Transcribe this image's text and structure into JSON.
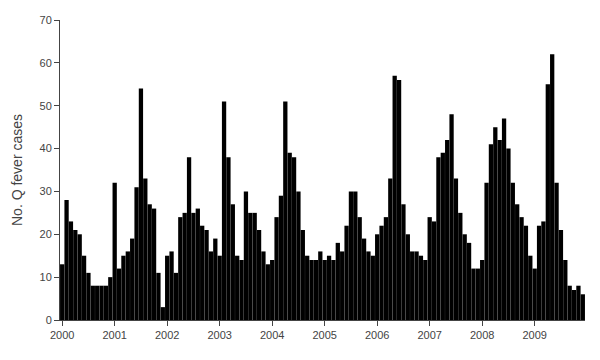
{
  "chart_data": {
    "type": "bar",
    "ylabel": "No. Q fever cases",
    "categories": [
      "2000",
      null,
      null,
      null,
      null,
      null,
      null,
      null,
      null,
      null,
      null,
      null,
      "2001",
      null,
      null,
      null,
      null,
      null,
      null,
      null,
      null,
      null,
      null,
      null,
      "2002",
      null,
      null,
      null,
      null,
      null,
      null,
      null,
      null,
      null,
      null,
      null,
      "2003",
      null,
      null,
      null,
      null,
      null,
      null,
      null,
      null,
      null,
      null,
      null,
      "2004",
      null,
      null,
      null,
      null,
      null,
      null,
      null,
      null,
      null,
      null,
      null,
      "2005",
      null,
      null,
      null,
      null,
      null,
      null,
      null,
      null,
      null,
      null,
      null,
      "2006",
      null,
      null,
      null,
      null,
      null,
      null,
      null,
      null,
      null,
      null,
      null,
      "2007",
      null,
      null,
      null,
      null,
      null,
      null,
      null,
      null,
      null,
      null,
      null,
      "2008",
      null,
      null,
      null,
      null,
      null,
      null,
      null,
      null,
      null,
      null,
      null,
      "2009",
      null,
      null,
      null,
      null,
      null,
      null,
      null,
      null,
      null,
      null,
      null
    ],
    "values": [
      13,
      28,
      23,
      21,
      20,
      15,
      11,
      8,
      8,
      8,
      8,
      10,
      32,
      12,
      15,
      16,
      19,
      31,
      54,
      33,
      27,
      26,
      11,
      3,
      15,
      16,
      11,
      24,
      25,
      38,
      25,
      26,
      22,
      21,
      16,
      19,
      15,
      51,
      38,
      27,
      15,
      14,
      30,
      25,
      25,
      21,
      16,
      13,
      14,
      24,
      29,
      51,
      39,
      38,
      30,
      21,
      15,
      14,
      14,
      16,
      14,
      15,
      14,
      18,
      16,
      22,
      30,
      30,
      24,
      19,
      16,
      15,
      20,
      22,
      24,
      33,
      57,
      56,
      27,
      20,
      16,
      16,
      15,
      14,
      24,
      23,
      38,
      39,
      42,
      48,
      33,
      25,
      20,
      18,
      12,
      12,
      14,
      32,
      41,
      45,
      42,
      47,
      40,
      32,
      27,
      24,
      22,
      15,
      12,
      22,
      23,
      55,
      62,
      32,
      21,
      14,
      8,
      7,
      8,
      6
    ],
    "color": "#000000",
    "ylim": [
      0,
      70
    ],
    "yticks": [
      0,
      10,
      20,
      30,
      40,
      50,
      60,
      70
    ],
    "grid": false
  }
}
